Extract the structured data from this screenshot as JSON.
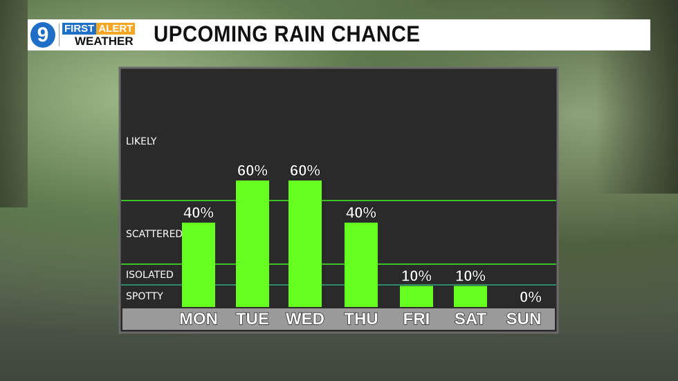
{
  "header": {
    "logo_number": "9",
    "logo_first": "FIRST",
    "logo_alert": "ALERT",
    "logo_weather": "WEATHER",
    "title": "UPCOMING RAIN CHANCE"
  },
  "colors": {
    "bar": "#66ff1f",
    "panel": "#2a2a2a",
    "threshold_line": "#3fbf2a",
    "spotty_line": "#2e8a6a",
    "day_strip": "#9a9a9a"
  },
  "chart_data": {
    "type": "bar",
    "categories": [
      "MON",
      "TUE",
      "WED",
      "THU",
      "FRI",
      "SAT",
      "SUN"
    ],
    "values": [
      40,
      60,
      60,
      40,
      10,
      10,
      0
    ],
    "data_labels": [
      "40%",
      "60%",
      "60%",
      "40%",
      "10%",
      "10%",
      "0%"
    ],
    "ylim": [
      0,
      100
    ],
    "zones": [
      "SPOTTY",
      "ISOLATED",
      "SCATTERED",
      "LIKELY"
    ],
    "zone_thresholds": [
      10,
      20,
      50
    ],
    "grid": false
  }
}
